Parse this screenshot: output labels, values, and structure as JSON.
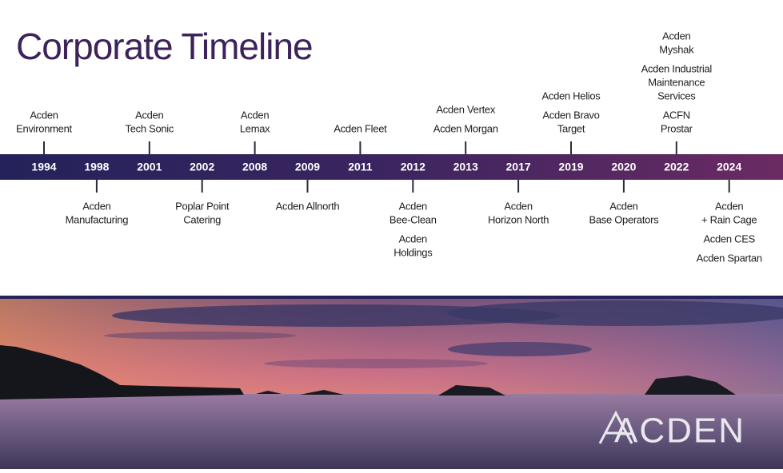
{
  "title": "Corporate Timeline",
  "logo": "ACDEN",
  "items": [
    {
      "year": "1994",
      "side": "above",
      "labels": [
        [
          "Acden",
          "Environment"
        ]
      ]
    },
    {
      "year": "1998",
      "side": "below",
      "labels": [
        [
          "Acden",
          "Manufacturing"
        ]
      ]
    },
    {
      "year": "2001",
      "side": "above",
      "labels": [
        [
          "Acden",
          "Tech Sonic"
        ]
      ]
    },
    {
      "year": "2002",
      "side": "below",
      "labels": [
        [
          "Poplar Point",
          "Catering"
        ]
      ]
    },
    {
      "year": "2008",
      "side": "above",
      "labels": [
        [
          "Acden",
          "Lemax"
        ]
      ]
    },
    {
      "year": "2009",
      "side": "below",
      "labels": [
        [
          "Acden Allnorth"
        ]
      ]
    },
    {
      "year": "2011",
      "side": "above",
      "labels": [
        [
          "Acden Fleet"
        ]
      ]
    },
    {
      "year": "2012",
      "side": "below",
      "labels": [
        [
          "Acden",
          "Bee-Clean"
        ],
        [
          "Acden",
          "Holdings"
        ]
      ]
    },
    {
      "year": "2013",
      "side": "above",
      "labels": [
        [
          "Acden Vertex"
        ],
        [
          "Acden Morgan"
        ]
      ]
    },
    {
      "year": "2017",
      "side": "below",
      "labels": [
        [
          "Acden",
          "Horizon North"
        ]
      ]
    },
    {
      "year": "2019",
      "side": "above",
      "labels": [
        [
          "Acden Helios"
        ],
        [
          "Acden Bravo",
          "Target"
        ]
      ]
    },
    {
      "year": "2020",
      "side": "below",
      "labels": [
        [
          "Acden",
          "Base Operators"
        ]
      ]
    },
    {
      "year": "2022",
      "side": "above",
      "labels": [
        [
          "Acden",
          "Myshak"
        ],
        [
          "Acden Industrial",
          "Maintenance",
          "Services"
        ],
        [
          "ACFN",
          "Prostar"
        ]
      ]
    },
    {
      "year": "2024",
      "side": "below",
      "labels": [
        [
          "Acden",
          "+ Rain Cage"
        ],
        [
          "Acden CES"
        ],
        [
          "Acden Spartan"
        ]
      ]
    }
  ]
}
